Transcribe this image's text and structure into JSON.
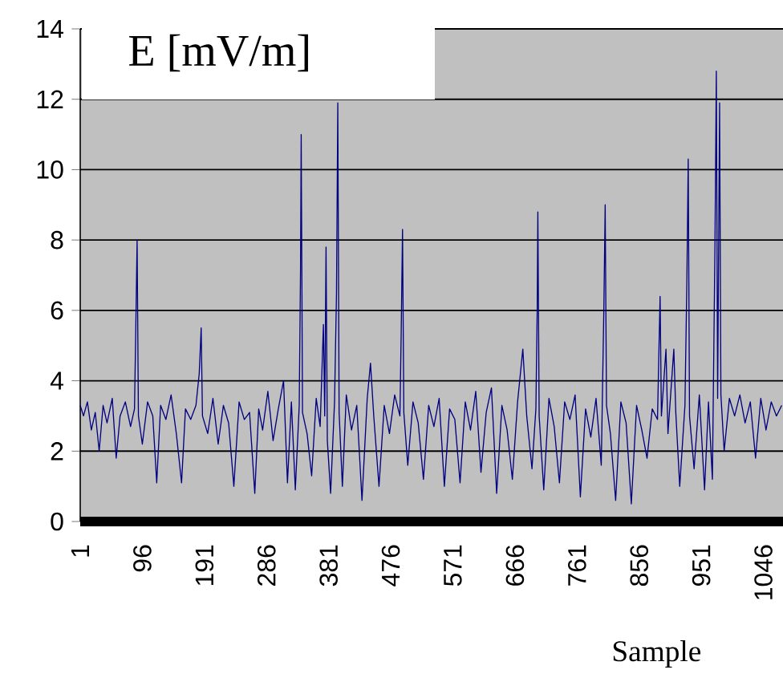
{
  "chart_data": {
    "type": "line",
    "ylabel": "E [mV/m]",
    "xlabel": "Sample",
    "color": "#000080",
    "grid": "y",
    "xlim": [
      1,
      1076
    ],
    "ylim": [
      0,
      14
    ],
    "xticks": [
      1,
      96,
      191,
      286,
      381,
      476,
      571,
      666,
      761,
      856,
      951,
      1046
    ],
    "yticks": [
      0,
      2,
      4,
      6,
      8,
      10,
      12,
      14
    ],
    "x": [
      1,
      6,
      12,
      18,
      24,
      30,
      36,
      42,
      50,
      56,
      62,
      70,
      78,
      84,
      86,
      88,
      90,
      96,
      104,
      112,
      118,
      124,
      132,
      140,
      148,
      156,
      162,
      170,
      178,
      183,
      186,
      188,
      196,
      204,
      212,
      220,
      228,
      236,
      244,
      252,
      260,
      268,
      274,
      280,
      288,
      296,
      304,
      312,
      318,
      324,
      330,
      336,
      338,
      339,
      341,
      348,
      355,
      362,
      368,
      373,
      375,
      377,
      379,
      384,
      390,
      393,
      395,
      397,
      402,
      408,
      416,
      424,
      432,
      440,
      445,
      450,
      458,
      466,
      474,
      482,
      490,
      492,
      494,
      496,
      502,
      510,
      518,
      526,
      534,
      542,
      550,
      558,
      566,
      574,
      582,
      590,
      598,
      606,
      614,
      622,
      630,
      638,
      646,
      654,
      662,
      670,
      678,
      684,
      692,
      698,
      700,
      701,
      703,
      710,
      718,
      726,
      734,
      742,
      750,
      758,
      766,
      774,
      782,
      790,
      798,
      802,
      804,
      806,
      812,
      820,
      828,
      836,
      844,
      852,
      860,
      868,
      876,
      884,
      886,
      888,
      890,
      897,
      900,
      909,
      912,
      918,
      926,
      929,
      931,
      933,
      940,
      948,
      956,
      962,
      968,
      972,
      974,
      976,
      979,
      981,
      986,
      994,
      1002,
      1010,
      1018,
      1026,
      1034,
      1042,
      1050,
      1058,
      1066,
      1074
    ],
    "values": [
      3.3,
      3.0,
      3.4,
      2.6,
      3.1,
      2.0,
      3.3,
      2.8,
      3.5,
      1.8,
      3.0,
      3.4,
      2.7,
      3.2,
      5.5,
      8.0,
      3.0,
      2.2,
      3.4,
      3.0,
      1.1,
      3.3,
      2.9,
      3.6,
      2.5,
      1.1,
      3.2,
      2.9,
      3.3,
      4.2,
      5.5,
      3.0,
      2.5,
      3.5,
      2.2,
      3.3,
      2.8,
      1.0,
      3.4,
      2.9,
      3.1,
      0.8,
      3.2,
      2.6,
      3.7,
      2.3,
      3.2,
      4.0,
      1.1,
      3.4,
      0.9,
      3.3,
      7.2,
      11.0,
      3.1,
      2.5,
      1.3,
      3.5,
      2.7,
      5.6,
      3.0,
      7.8,
      2.3,
      0.8,
      3.4,
      6.5,
      11.9,
      3.1,
      1.0,
      3.6,
      2.6,
      3.3,
      0.6,
      3.5,
      4.5,
      3.0,
      1.0,
      3.3,
      2.5,
      3.6,
      3.0,
      5.4,
      8.3,
      3.1,
      1.6,
      3.4,
      2.8,
      1.2,
      3.3,
      2.7,
      3.5,
      1.0,
      3.2,
      2.9,
      1.1,
      3.4,
      2.6,
      3.7,
      1.4,
      3.1,
      3.8,
      0.8,
      3.3,
      2.6,
      1.2,
      3.4,
      4.9,
      3.0,
      1.5,
      3.2,
      6.0,
      8.8,
      3.0,
      0.9,
      3.5,
      2.7,
      1.1,
      3.4,
      2.9,
      3.6,
      0.7,
      3.2,
      2.4,
      3.5,
      1.6,
      6.1,
      9.0,
      3.3,
      2.5,
      0.6,
      3.4,
      2.8,
      0.5,
      3.3,
      2.6,
      1.8,
      3.2,
      2.9,
      4.7,
      6.4,
      3.0,
      4.9,
      2.5,
      4.9,
      3.1,
      1.0,
      3.3,
      6.9,
      10.3,
      3.0,
      1.5,
      3.6,
      0.9,
      3.4,
      1.2,
      8.0,
      12.8,
      3.5,
      11.9,
      3.6,
      2.0,
      3.5,
      3.0,
      3.6,
      2.8,
      3.4,
      1.8,
      3.5,
      2.6,
      3.4,
      3.0,
      3.3
    ]
  }
}
